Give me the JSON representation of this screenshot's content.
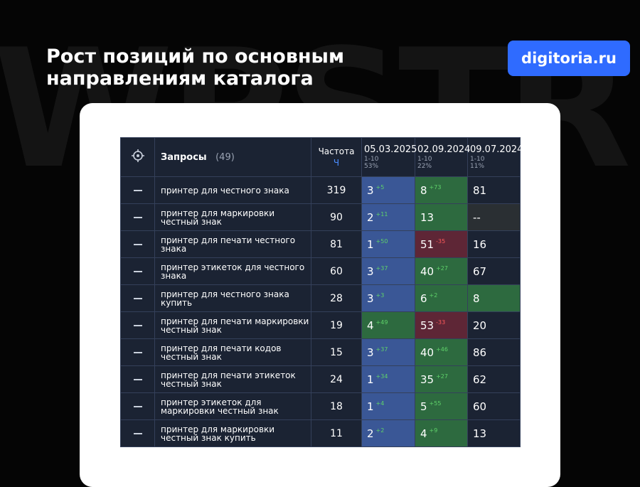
{
  "header": {
    "title": "Рост позиций по основным направлениям каталога",
    "brand": "digitoria.ru",
    "watermark": "WPSTR"
  },
  "table": {
    "query_header": "Запросы",
    "query_count": "(49)",
    "freq_header": "Частота",
    "freq_sub": "Ч",
    "dates": [
      {
        "date": "05.03.2025",
        "range": "1-10",
        "share": "53%"
      },
      {
        "date": "02.09.2024",
        "range": "1-10",
        "share": "22%"
      },
      {
        "date": "09.07.2024",
        "range": "1-10",
        "share": "11%"
      }
    ],
    "rows": [
      {
        "query": "принтер для честного знака",
        "freq": 319,
        "cells": [
          {
            "pos": 3,
            "delta": "+5",
            "tone": "blue"
          },
          {
            "pos": 8,
            "delta": "+73",
            "tone": "green"
          },
          {
            "pos": 81,
            "tone": "dark"
          }
        ]
      },
      {
        "query": "принтер для маркировки честный знак",
        "freq": 90,
        "cells": [
          {
            "pos": 2,
            "delta": "+11",
            "tone": "blue"
          },
          {
            "pos": 13,
            "tone": "green"
          },
          {
            "pos": "--",
            "tone": "grey"
          }
        ]
      },
      {
        "query": "принтер для печати честного знака",
        "freq": 81,
        "cells": [
          {
            "pos": 1,
            "delta": "+50",
            "tone": "blue"
          },
          {
            "pos": 51,
            "delta": "-35",
            "tone": "red"
          },
          {
            "pos": 16,
            "tone": "dark"
          }
        ]
      },
      {
        "query": "принтер этикеток для честного знака",
        "freq": 60,
        "cells": [
          {
            "pos": 3,
            "delta": "+37",
            "tone": "blue"
          },
          {
            "pos": 40,
            "delta": "+27",
            "tone": "green"
          },
          {
            "pos": 67,
            "tone": "dark"
          }
        ]
      },
      {
        "query": "принтер для честного знака купить",
        "freq": 28,
        "cells": [
          {
            "pos": 3,
            "delta": "+3",
            "tone": "blue"
          },
          {
            "pos": 6,
            "delta": "+2",
            "tone": "green"
          },
          {
            "pos": 8,
            "tone": "green"
          }
        ]
      },
      {
        "query": "принтер для печати маркировки честный знак",
        "freq": 19,
        "cells": [
          {
            "pos": 4,
            "delta": "+49",
            "tone": "green"
          },
          {
            "pos": 53,
            "delta": "-33",
            "tone": "red"
          },
          {
            "pos": 20,
            "tone": "dark"
          }
        ]
      },
      {
        "query": "принтер для печати кодов честный знак",
        "freq": 15,
        "cells": [
          {
            "pos": 3,
            "delta": "+37",
            "tone": "blue"
          },
          {
            "pos": 40,
            "delta": "+46",
            "tone": "green"
          },
          {
            "pos": 86,
            "tone": "dark"
          }
        ]
      },
      {
        "query": "принтер для печати этикеток честный знак",
        "freq": 24,
        "cells": [
          {
            "pos": 1,
            "delta": "+34",
            "tone": "blue"
          },
          {
            "pos": 35,
            "delta": "+27",
            "tone": "green"
          },
          {
            "pos": 62,
            "tone": "dark"
          }
        ]
      },
      {
        "query": "принтер этикеток для маркировки честный знак",
        "freq": 18,
        "cells": [
          {
            "pos": 1,
            "delta": "+4",
            "tone": "blue"
          },
          {
            "pos": 5,
            "delta": "+55",
            "tone": "green"
          },
          {
            "pos": 60,
            "tone": "dark"
          }
        ]
      },
      {
        "query": "принтер для маркировки честный знак купить",
        "freq": 11,
        "cells": [
          {
            "pos": 2,
            "delta": "+2",
            "tone": "blue"
          },
          {
            "pos": 4,
            "delta": "+9",
            "tone": "green"
          },
          {
            "pos": 13,
            "tone": "dark"
          }
        ]
      }
    ]
  }
}
